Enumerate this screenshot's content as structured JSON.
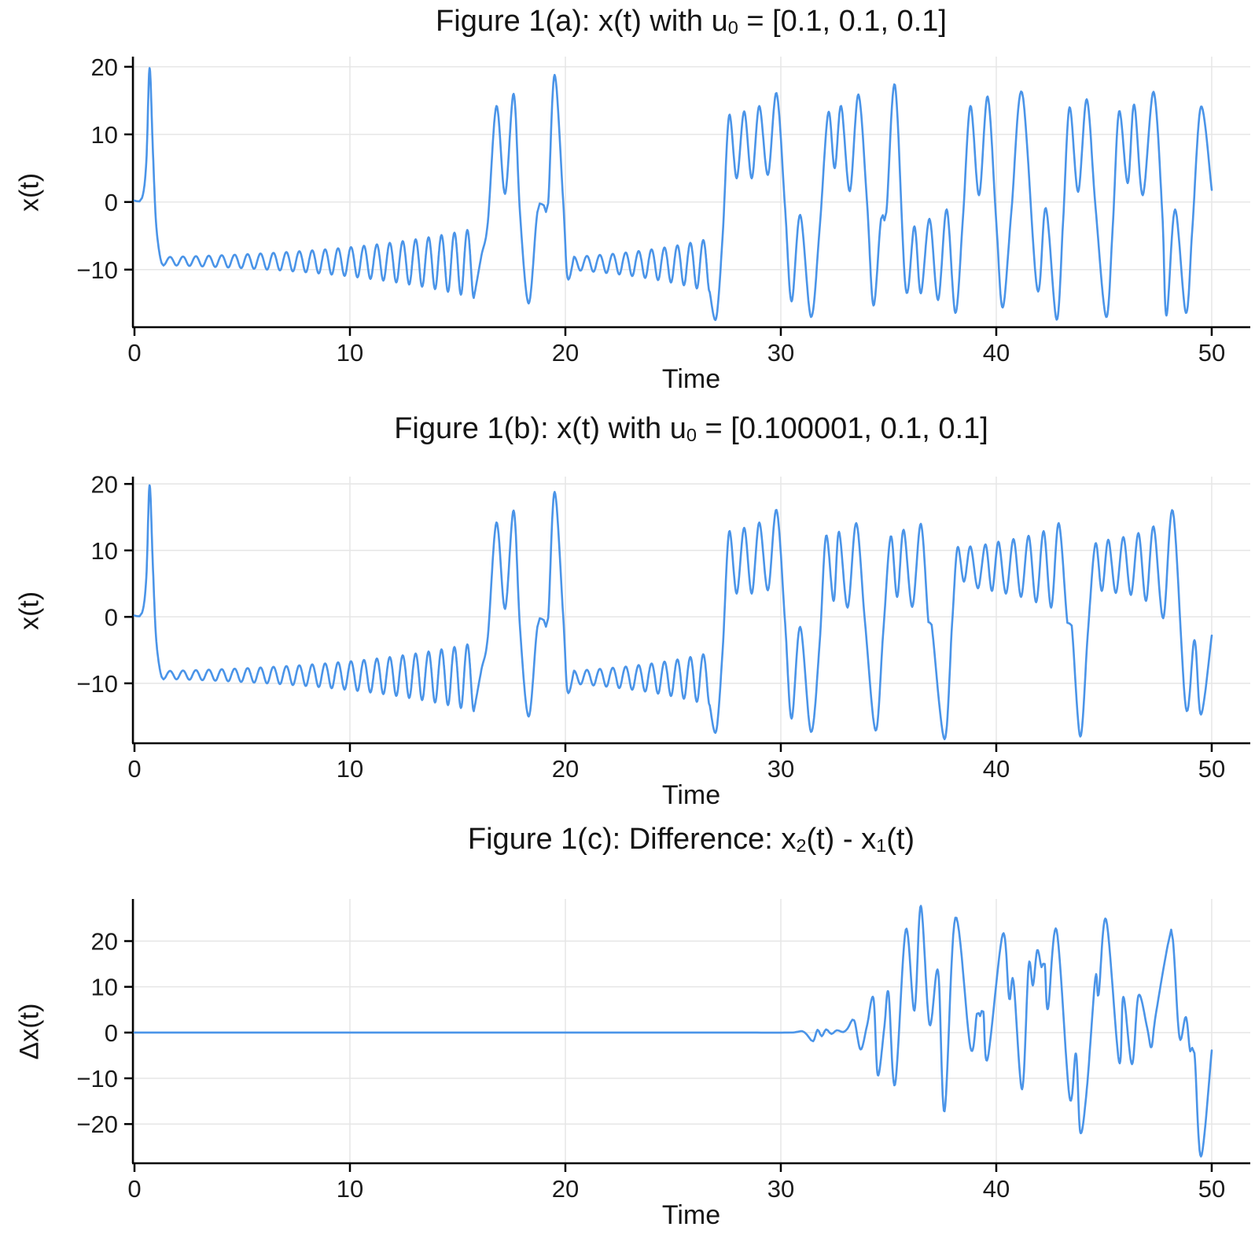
{
  "style": {
    "line_color": "#4A94E8",
    "grid_color": "#e6e6e6",
    "spine_color": "#000000",
    "text_color": "#1c1c1c"
  },
  "chart_data": [
    {
      "id": "a",
      "type": "line",
      "title_pre": "Figure 1(a): x(t) with u",
      "title_sub": "0",
      "title_post": " = [0.1, 0.1, 0.1]",
      "xlabel": "Time",
      "ylabel": "x(t)",
      "xticks": [
        0,
        10,
        20,
        30,
        40,
        50
      ],
      "yticks": [
        20,
        10,
        0,
        -10
      ],
      "xlim": [
        -0.11,
        51.79
      ],
      "ylim": [
        -18.4,
        21.5
      ],
      "grid": true,
      "legend": "none",
      "segments": [
        {
          "kind": "points",
          "pts": [
            [
              0,
              0.2
            ],
            [
              0.35,
              0.6
            ],
            [
              0.55,
              6
            ],
            [
              0.7,
              19.8
            ],
            [
              0.85,
              8
            ],
            [
              1.0,
              -3
            ],
            [
              1.2,
              -8.3
            ],
            [
              1.35,
              -9.4
            ]
          ]
        },
        {
          "kind": "osc",
          "t0": 1.35,
          "t1": 15.75,
          "period": 0.6,
          "mean": -8.7,
          "amp0": 0.55,
          "growth": 0.15,
          "asym": 1.15,
          "phase": "min"
        },
        {
          "kind": "points",
          "pts": [
            [
              16.1,
              -8
            ],
            [
              16.4,
              -3
            ],
            [
              16.8,
              14.2
            ],
            [
              17.2,
              1.2
            ],
            [
              17.6,
              16.0
            ],
            [
              17.9,
              -2
            ],
            [
              18.3,
              -15.0
            ],
            [
              18.7,
              -1.5
            ],
            [
              19.0,
              -0.5
            ],
            [
              19.2,
              -0.2
            ],
            [
              19.5,
              18.8
            ],
            [
              19.9,
              0
            ],
            [
              20.1,
              -11.2
            ]
          ]
        },
        {
          "kind": "osc",
          "t0": 20.4,
          "t1": 26.7,
          "period": 0.6,
          "mean": -9.0,
          "amp0": 0.9,
          "growth": 0.22,
          "asym": 1.2,
          "phase": "max"
        },
        {
          "kind": "points",
          "pts": [
            [
              27.0,
              -17.2
            ],
            [
              27.3,
              -5
            ],
            [
              27.6,
              12.8
            ],
            [
              27.95,
              3.5
            ],
            [
              28.3,
              13.4
            ],
            [
              28.65,
              3.5
            ],
            [
              29.0,
              14.2
            ],
            [
              29.4,
              4.0
            ],
            [
              29.8,
              16.1
            ],
            [
              30.2,
              -1.0
            ],
            [
              30.5,
              -14.7
            ],
            [
              30.9,
              -1.9
            ],
            [
              31.4,
              -17.0
            ],
            [
              31.8,
              -4
            ],
            [
              32.2,
              13.2
            ],
            [
              32.5,
              5.0
            ],
            [
              32.8,
              14.2
            ],
            [
              33.2,
              1.6
            ],
            [
              33.6,
              15.9
            ],
            [
              34.0,
              0.0
            ],
            [
              34.3,
              -15.3
            ],
            [
              34.65,
              -2.5
            ],
            [
              34.9,
              -1.5
            ],
            [
              35.3,
              17.3
            ],
            [
              35.8,
              -12.9
            ],
            [
              36.2,
              -3.6
            ],
            [
              36.5,
              -13.5
            ],
            [
              36.9,
              -2.5
            ],
            [
              37.3,
              -14.5
            ],
            [
              37.7,
              -1.1
            ],
            [
              38.1,
              -16.4
            ],
            [
              38.45,
              -2.5
            ],
            [
              38.8,
              14.2
            ],
            [
              39.2,
              1.0
            ],
            [
              39.6,
              15.6
            ],
            [
              40.0,
              -3.0
            ],
            [
              40.3,
              -15.6
            ],
            [
              40.7,
              -1.5
            ],
            [
              41.2,
              16.2
            ],
            [
              41.9,
              -12.9
            ],
            [
              42.3,
              -0.9
            ],
            [
              42.8,
              -17.4
            ],
            [
              43.1,
              -3.0
            ],
            [
              43.4,
              14.0
            ],
            [
              43.8,
              1.5
            ],
            [
              44.2,
              15.2
            ],
            [
              44.6,
              -0.5
            ],
            [
              45.1,
              -17.0
            ],
            [
              45.4,
              -4.0
            ],
            [
              45.7,
              13.4
            ],
            [
              46.1,
              2.8
            ],
            [
              46.4,
              14.4
            ],
            [
              46.8,
              1.0
            ],
            [
              47.3,
              16.3
            ],
            [
              47.7,
              -1.3
            ],
            [
              47.9,
              -16.8
            ],
            [
              48.3,
              -1.1
            ],
            [
              48.8,
              -16.4
            ],
            [
              49.1,
              -4.0
            ],
            [
              49.5,
              14.1
            ],
            [
              50,
              1.8
            ]
          ]
        }
      ]
    },
    {
      "id": "b",
      "type": "line",
      "title_pre": "Figure 1(b): x(t) with u",
      "title_sub": "0",
      "title_post": " = [0.100001, 0.1, 0.1]",
      "xlabel": "Time",
      "ylabel": "x(t)",
      "xticks": [
        0,
        10,
        20,
        30,
        40,
        50
      ],
      "yticks": [
        20,
        10,
        0,
        -10
      ],
      "xlim": [
        -0.11,
        51.79
      ],
      "ylim": [
        -18.9,
        21.1
      ],
      "grid": true,
      "legend": "none",
      "segments": [
        {
          "kind": "points",
          "pts": [
            [
              0,
              0.2
            ],
            [
              0.35,
              0.6
            ],
            [
              0.55,
              6
            ],
            [
              0.7,
              19.8
            ],
            [
              0.85,
              8
            ],
            [
              1.0,
              -3
            ],
            [
              1.2,
              -8.3
            ],
            [
              1.35,
              -9.4
            ]
          ]
        },
        {
          "kind": "osc",
          "t0": 1.35,
          "t1": 15.75,
          "period": 0.6,
          "mean": -8.7,
          "amp0": 0.55,
          "growth": 0.15,
          "asym": 1.15,
          "phase": "min"
        },
        {
          "kind": "points",
          "pts": [
            [
              16.1,
              -8
            ],
            [
              16.4,
              -3
            ],
            [
              16.8,
              14.2
            ],
            [
              17.2,
              1.2
            ],
            [
              17.6,
              16.0
            ],
            [
              17.9,
              -2
            ],
            [
              18.3,
              -15.0
            ],
            [
              18.7,
              -1.5
            ],
            [
              19.0,
              -0.5
            ],
            [
              19.2,
              -0.2
            ],
            [
              19.5,
              18.8
            ],
            [
              19.9,
              0
            ],
            [
              20.1,
              -11.2
            ]
          ]
        },
        {
          "kind": "osc",
          "t0": 20.4,
          "t1": 26.7,
          "period": 0.6,
          "mean": -9.0,
          "amp0": 0.9,
          "growth": 0.22,
          "asym": 1.2,
          "phase": "max"
        },
        {
          "kind": "points",
          "pts": [
            [
              27.0,
              -17.2
            ],
            [
              27.3,
              -5
            ],
            [
              27.6,
              12.8
            ],
            [
              27.95,
              3.5
            ],
            [
              28.3,
              13.4
            ],
            [
              28.65,
              3.5
            ],
            [
              29.0,
              14.2
            ],
            [
              29.4,
              4.0
            ],
            [
              29.8,
              16.1
            ],
            [
              30.2,
              -1.0
            ],
            [
              30.5,
              -15.3
            ],
            [
              30.9,
              -1.5
            ],
            [
              31.4,
              -17.3
            ],
            [
              31.8,
              -4
            ],
            [
              32.1,
              12.2
            ],
            [
              32.45,
              2.4
            ],
            [
              32.7,
              12.8
            ],
            [
              33.1,
              1.4
            ],
            [
              33.5,
              14.1
            ],
            [
              33.9,
              -0.5
            ],
            [
              34.4,
              -17.1
            ],
            [
              34.75,
              -2.5
            ],
            [
              35.1,
              12.1
            ],
            [
              35.4,
              3.0
            ],
            [
              35.7,
              13.1
            ],
            [
              36.1,
              1.5
            ],
            [
              36.5,
              14.0
            ],
            [
              36.85,
              -0.8
            ],
            [
              37.0,
              -1.2
            ],
            [
              37.6,
              -18.4
            ],
            [
              37.95,
              -1.0
            ],
            [
              38.2,
              10.4
            ],
            [
              38.5,
              5.3
            ],
            [
              38.8,
              10.6
            ],
            [
              39.15,
              4.3
            ],
            [
              39.5,
              10.9
            ],
            [
              39.8,
              3.9
            ],
            [
              40.1,
              11.3
            ],
            [
              40.45,
              3.5
            ],
            [
              40.8,
              11.7
            ],
            [
              41.15,
              3.0
            ],
            [
              41.5,
              12.2
            ],
            [
              41.85,
              2.2
            ],
            [
              42.2,
              12.9
            ],
            [
              42.55,
              1.4
            ],
            [
              42.9,
              14.1
            ],
            [
              43.3,
              -0.9
            ],
            [
              43.5,
              -1.3
            ],
            [
              43.9,
              -18.0
            ],
            [
              44.25,
              -2.5
            ],
            [
              44.6,
              11.0
            ],
            [
              44.9,
              3.9
            ],
            [
              45.2,
              11.6
            ],
            [
              45.55,
              3.6
            ],
            [
              45.9,
              12.0
            ],
            [
              46.25,
              3.3
            ],
            [
              46.6,
              12.6
            ],
            [
              46.95,
              2.4
            ],
            [
              47.3,
              13.6
            ],
            [
              47.75,
              -0.2
            ],
            [
              48.2,
              15.9
            ],
            [
              48.8,
              -13.7
            ],
            [
              49.2,
              -3.5
            ],
            [
              49.5,
              -14.7
            ],
            [
              50,
              -2.8
            ]
          ]
        }
      ]
    },
    {
      "id": "c",
      "type": "line",
      "title_parts": [
        "Figure 1(c): Difference: x",
        "2",
        "(t) - x",
        "1",
        "(t)"
      ],
      "xlabel": "Time",
      "ylabel": "Δx(t)",
      "xticks": [
        0,
        10,
        20,
        30,
        40,
        50
      ],
      "yticks": [
        20,
        10,
        0,
        -10,
        -20
      ],
      "xlim": [
        -0.11,
        51.79
      ],
      "ylim": [
        -28.4,
        29.2
      ],
      "grid": true,
      "legend": "none",
      "segments": [
        {
          "kind": "points",
          "pts": [
            [
              0,
              0
            ],
            [
              5,
              0
            ],
            [
              10,
              0
            ],
            [
              15,
              0
            ],
            [
              20,
              0
            ],
            [
              25,
              0
            ],
            [
              28,
              0
            ],
            [
              30.3,
              0
            ],
            [
              30.7,
              0.1
            ],
            [
              31.0,
              0.3
            ],
            [
              31.2,
              -0.4
            ],
            [
              31.5,
              -1.9
            ],
            [
              31.7,
              0.6
            ],
            [
              31.9,
              -0.8
            ],
            [
              32.1,
              0.7
            ],
            [
              32.35,
              -0.3
            ],
            [
              32.6,
              0.5
            ],
            [
              32.9,
              0.1
            ],
            [
              33.1,
              0.9
            ],
            [
              33.4,
              2.7
            ],
            [
              33.7,
              -3.7
            ],
            [
              34.0,
              1.5
            ],
            [
              34.3,
              7.5
            ],
            [
              34.5,
              -9.3
            ],
            [
              34.8,
              1.0
            ],
            [
              35.0,
              8.7
            ],
            [
              35.3,
              -11.4
            ],
            [
              35.8,
              22.5
            ],
            [
              36.2,
              4.8
            ],
            [
              36.5,
              27.7
            ],
            [
              36.9,
              1.8
            ],
            [
              37.3,
              13.4
            ],
            [
              37.6,
              -17.2
            ],
            [
              38.1,
              25.1
            ],
            [
              38.8,
              -3.3
            ],
            [
              39.1,
              4.1
            ],
            [
              39.25,
              3.6
            ],
            [
              39.4,
              4.6
            ],
            [
              39.6,
              -5.7
            ],
            [
              40.3,
              21.5
            ],
            [
              40.6,
              7.4
            ],
            [
              40.8,
              11.2
            ],
            [
              41.2,
              -12.4
            ],
            [
              41.5,
              14.6
            ],
            [
              41.7,
              10.3
            ],
            [
              41.9,
              18.0
            ],
            [
              42.1,
              14.3
            ],
            [
              42.25,
              15.0
            ],
            [
              42.4,
              5.2
            ],
            [
              42.8,
              22.4
            ],
            [
              43.4,
              -14.1
            ],
            [
              43.7,
              -4.6
            ],
            [
              43.9,
              -21.8
            ],
            [
              44.2,
              -12.5
            ],
            [
              44.6,
              12.0
            ],
            [
              44.75,
              8.3
            ],
            [
              45.1,
              24.7
            ],
            [
              45.7,
              -6.4
            ],
            [
              45.9,
              7.8
            ],
            [
              46.3,
              -6.9
            ],
            [
              46.6,
              8.1
            ],
            [
              47.0,
              1.1
            ],
            [
              47.2,
              -3.2
            ],
            [
              47.4,
              3.8
            ],
            [
              48.0,
              20.0
            ],
            [
              48.2,
              20.3
            ],
            [
              48.5,
              -1.0
            ],
            [
              48.8,
              3.4
            ],
            [
              49.0,
              -4.1
            ],
            [
              49.2,
              -4.5
            ],
            [
              49.5,
              -27.1
            ],
            [
              50,
              -3.9
            ]
          ]
        }
      ]
    }
  ]
}
